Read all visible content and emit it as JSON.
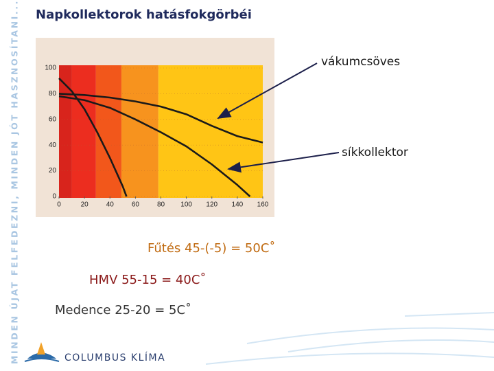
{
  "header": {
    "title": "Napkollektorok hatásfokgörbéi"
  },
  "sidebar": {
    "text": "MINDEN ÚJAT FELFEDEZNI, MINDEN JÓT HASZNOSÍTANI..."
  },
  "logo": {
    "text": "COLUMBUS KLÍMA"
  },
  "notes": [
    "Fűtés 45-(-5) = 50C˚",
    "HMV 55-15 = 40C˚",
    "Medence 25-20 = 5C˚"
  ],
  "annotations": [
    "vákumcsöves",
    "síkkollektor"
  ],
  "chart_data": {
    "type": "line",
    "xlim": [
      0,
      160
    ],
    "xticks": [
      0,
      20,
      40,
      60,
      80,
      100,
      120,
      140,
      160
    ],
    "ylim": [
      0,
      100
    ],
    "yticks": [
      0,
      20,
      40,
      60,
      80,
      100
    ],
    "grid": true,
    "bands": [
      {
        "from": 0,
        "to": 10,
        "color": "#d8241c"
      },
      {
        "from": 10,
        "to": 29,
        "color": "#ec2d1f"
      },
      {
        "from": 29,
        "to": 49,
        "color": "#f2571b"
      },
      {
        "from": 49,
        "to": 78,
        "color": "#f7931e"
      },
      {
        "from": 78,
        "to": 160,
        "color": "#ffc515"
      }
    ],
    "series": [
      {
        "color": "#1a1a1a",
        "x": [
          0,
          20,
          40,
          60,
          80,
          100,
          120,
          140,
          160
        ],
        "values": [
          80,
          79,
          77,
          74,
          70,
          64,
          55,
          47,
          42
        ]
      },
      {
        "color": "#1a1a1a",
        "x": [
          0,
          20,
          40,
          60,
          80,
          100,
          120,
          140,
          150
        ],
        "values": [
          78,
          75,
          69,
          60,
          50,
          39,
          25,
          9,
          0
        ]
      },
      {
        "color": "#1a1a1a",
        "x": [
          0,
          10,
          20,
          30,
          40,
          50,
          53
        ],
        "values": [
          92,
          82,
          68,
          50,
          30,
          8,
          0
        ]
      }
    ]
  }
}
